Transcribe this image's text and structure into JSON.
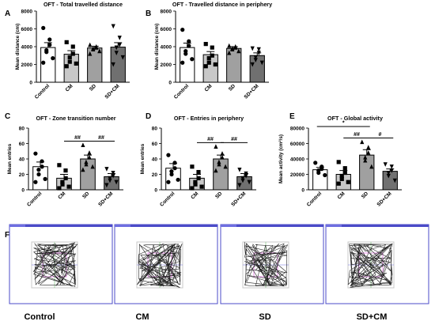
{
  "charts": [
    {
      "panel": "A",
      "title": "OFT - Total travelled distance",
      "ylabel": "Mean distance (cm)",
      "yticks": [
        "8000",
        "6000",
        "4000",
        "2000",
        "0"
      ]
    },
    {
      "panel": "B",
      "title": "OFT - Travelled distance in periphery",
      "ylabel": "Mean distance (cm)",
      "yticks": [
        "8000",
        "6000",
        "4000",
        "2000",
        "0"
      ]
    },
    {
      "panel": "C",
      "title": "OFT - Zone transition number",
      "ylabel": "Mean entries",
      "yticks": [
        "80",
        "60",
        "40",
        "20",
        "0"
      ]
    },
    {
      "panel": "D",
      "title": "OFT - Entries in periphery",
      "ylabel": "Mean entries",
      "yticks": [
        "80",
        "60",
        "40",
        "20",
        "0"
      ]
    },
    {
      "panel": "E",
      "title": "OFT - Global activity",
      "ylabel": "Mean activity (cm²/s)",
      "yticks": [
        "80000",
        "60000",
        "40000",
        "20000",
        "0"
      ]
    }
  ],
  "chart_data": [
    {
      "type": "bar",
      "panel": "A",
      "title": "OFT - Total travelled distance",
      "xlabel": "",
      "ylabel": "Mean distance (cm)",
      "ylim": [
        0,
        8000
      ],
      "categories": [
        "Control",
        "CM",
        "SD",
        "SD+CM"
      ],
      "values": [
        3900,
        3150,
        3850,
        3950
      ],
      "errors": [
        550,
        400,
        200,
        500
      ],
      "points": [
        [
          6100,
          4800,
          4200,
          3600,
          3400,
          2700,
          2200
        ],
        [
          4500,
          4000,
          3200,
          2800,
          2300,
          2100,
          1800
        ],
        [
          4200,
          4000,
          3900,
          3800,
          3700,
          3500,
          3200
        ],
        [
          6300,
          5000,
          4200,
          3900,
          3300,
          2800,
          2000
        ]
      ],
      "significance": []
    },
    {
      "type": "bar",
      "panel": "B",
      "title": "OFT - Travelled distance in periphery",
      "xlabel": "",
      "ylabel": "Mean distance (cm)",
      "ylim": [
        0,
        8000
      ],
      "categories": [
        "Control",
        "CM",
        "SD",
        "SD+CM"
      ],
      "values": [
        3900,
        3100,
        3800,
        3000
      ],
      "errors": [
        500,
        350,
        200,
        300
      ],
      "points": [
        [
          5900,
          4600,
          4100,
          3500,
          3200,
          2600,
          2200
        ],
        [
          4300,
          3900,
          3000,
          2700,
          2200,
          2000,
          1800
        ],
        [
          4100,
          4000,
          3900,
          3800,
          3700,
          3500,
          3300
        ],
        [
          3800,
          3700,
          3300,
          2800,
          2500,
          2200,
          2000
        ]
      ],
      "significance": []
    },
    {
      "type": "bar",
      "panel": "C",
      "title": "OFT - Zone transition number",
      "xlabel": "",
      "ylabel": "Mean entries",
      "ylim": [
        0,
        80
      ],
      "categories": [
        "Control",
        "CM",
        "SD",
        "SD+CM"
      ],
      "values": [
        30,
        15,
        40,
        17
      ],
      "errors": [
        6,
        5,
        5,
        4
      ],
      "points": [
        [
          47,
          37,
          30,
          26,
          20,
          14,
          10
        ],
        [
          32,
          25,
          15,
          10,
          7,
          4,
          2
        ],
        [
          58,
          48,
          42,
          36,
          33,
          30,
          26
        ],
        [
          27,
          22,
          18,
          15,
          12,
          10,
          6
        ]
      ],
      "significance": [
        {
          "from": 1,
          "to": 2,
          "label": "##"
        },
        {
          "from": 2,
          "to": 3,
          "label": "##"
        }
      ]
    },
    {
      "type": "bar",
      "panel": "D",
      "title": "OFT - Entries in periphery",
      "xlabel": "",
      "ylabel": "Mean entries",
      "ylim": [
        0,
        80
      ],
      "categories": [
        "Control",
        "CM",
        "SD",
        "SD+CM"
      ],
      "values": [
        28,
        15,
        40,
        17
      ],
      "errors": [
        6,
        5,
        5,
        4
      ],
      "points": [
        [
          45,
          35,
          28,
          24,
          20,
          13,
          10
        ],
        [
          30,
          23,
          15,
          10,
          7,
          4,
          2
        ],
        [
          56,
          47,
          42,
          36,
          33,
          30,
          25
        ],
        [
          26,
          21,
          18,
          15,
          12,
          10,
          6
        ]
      ],
      "significance": [
        {
          "from": 1,
          "to": 2,
          "label": "##"
        },
        {
          "from": 2,
          "to": 3,
          "label": "##"
        }
      ]
    },
    {
      "type": "bar",
      "panel": "E",
      "title": "OFT - Global activity",
      "xlabel": "",
      "ylabel": "Mean activity (cm²/s)",
      "ylim": [
        0,
        80000
      ],
      "categories": [
        "Control",
        "CM",
        "SD",
        "SD+CM"
      ],
      "values": [
        26000,
        20000,
        45000,
        24000
      ],
      "errors": [
        3000,
        5000,
        7000,
        3000
      ],
      "points": [
        [
          35000,
          30000,
          27000,
          25000,
          22000,
          19000
        ],
        [
          36000,
          28000,
          22000,
          18000,
          14000,
          10000,
          8000
        ],
        [
          62000,
          55000,
          48000,
          42000,
          38000,
          30000
        ],
        [
          33000,
          30000,
          25000,
          22000,
          18000,
          12000
        ]
      ],
      "significance": [
        {
          "from": 0,
          "to": 2,
          "label": "*"
        },
        {
          "from": 1,
          "to": 2,
          "label": "##"
        },
        {
          "from": 2,
          "to": 3,
          "label": "#"
        }
      ]
    }
  ],
  "bar_colors": [
    "#ffffff",
    "#c8c8c8",
    "#a0a0a0",
    "#707070"
  ],
  "marker_shapes": [
    "circle",
    "square",
    "triangle-up",
    "triangle-down"
  ],
  "panel_f": {
    "panel": "F",
    "tracks": [
      {
        "label": "Control",
        "color_hint": "#4b4bc8"
      },
      {
        "label": "CM",
        "color_hint": "#4b4bc8"
      },
      {
        "label": "SD",
        "color_hint": "#4b4bc8"
      },
      {
        "label": "SD+CM",
        "color_hint": "#4b4bc8"
      }
    ]
  }
}
